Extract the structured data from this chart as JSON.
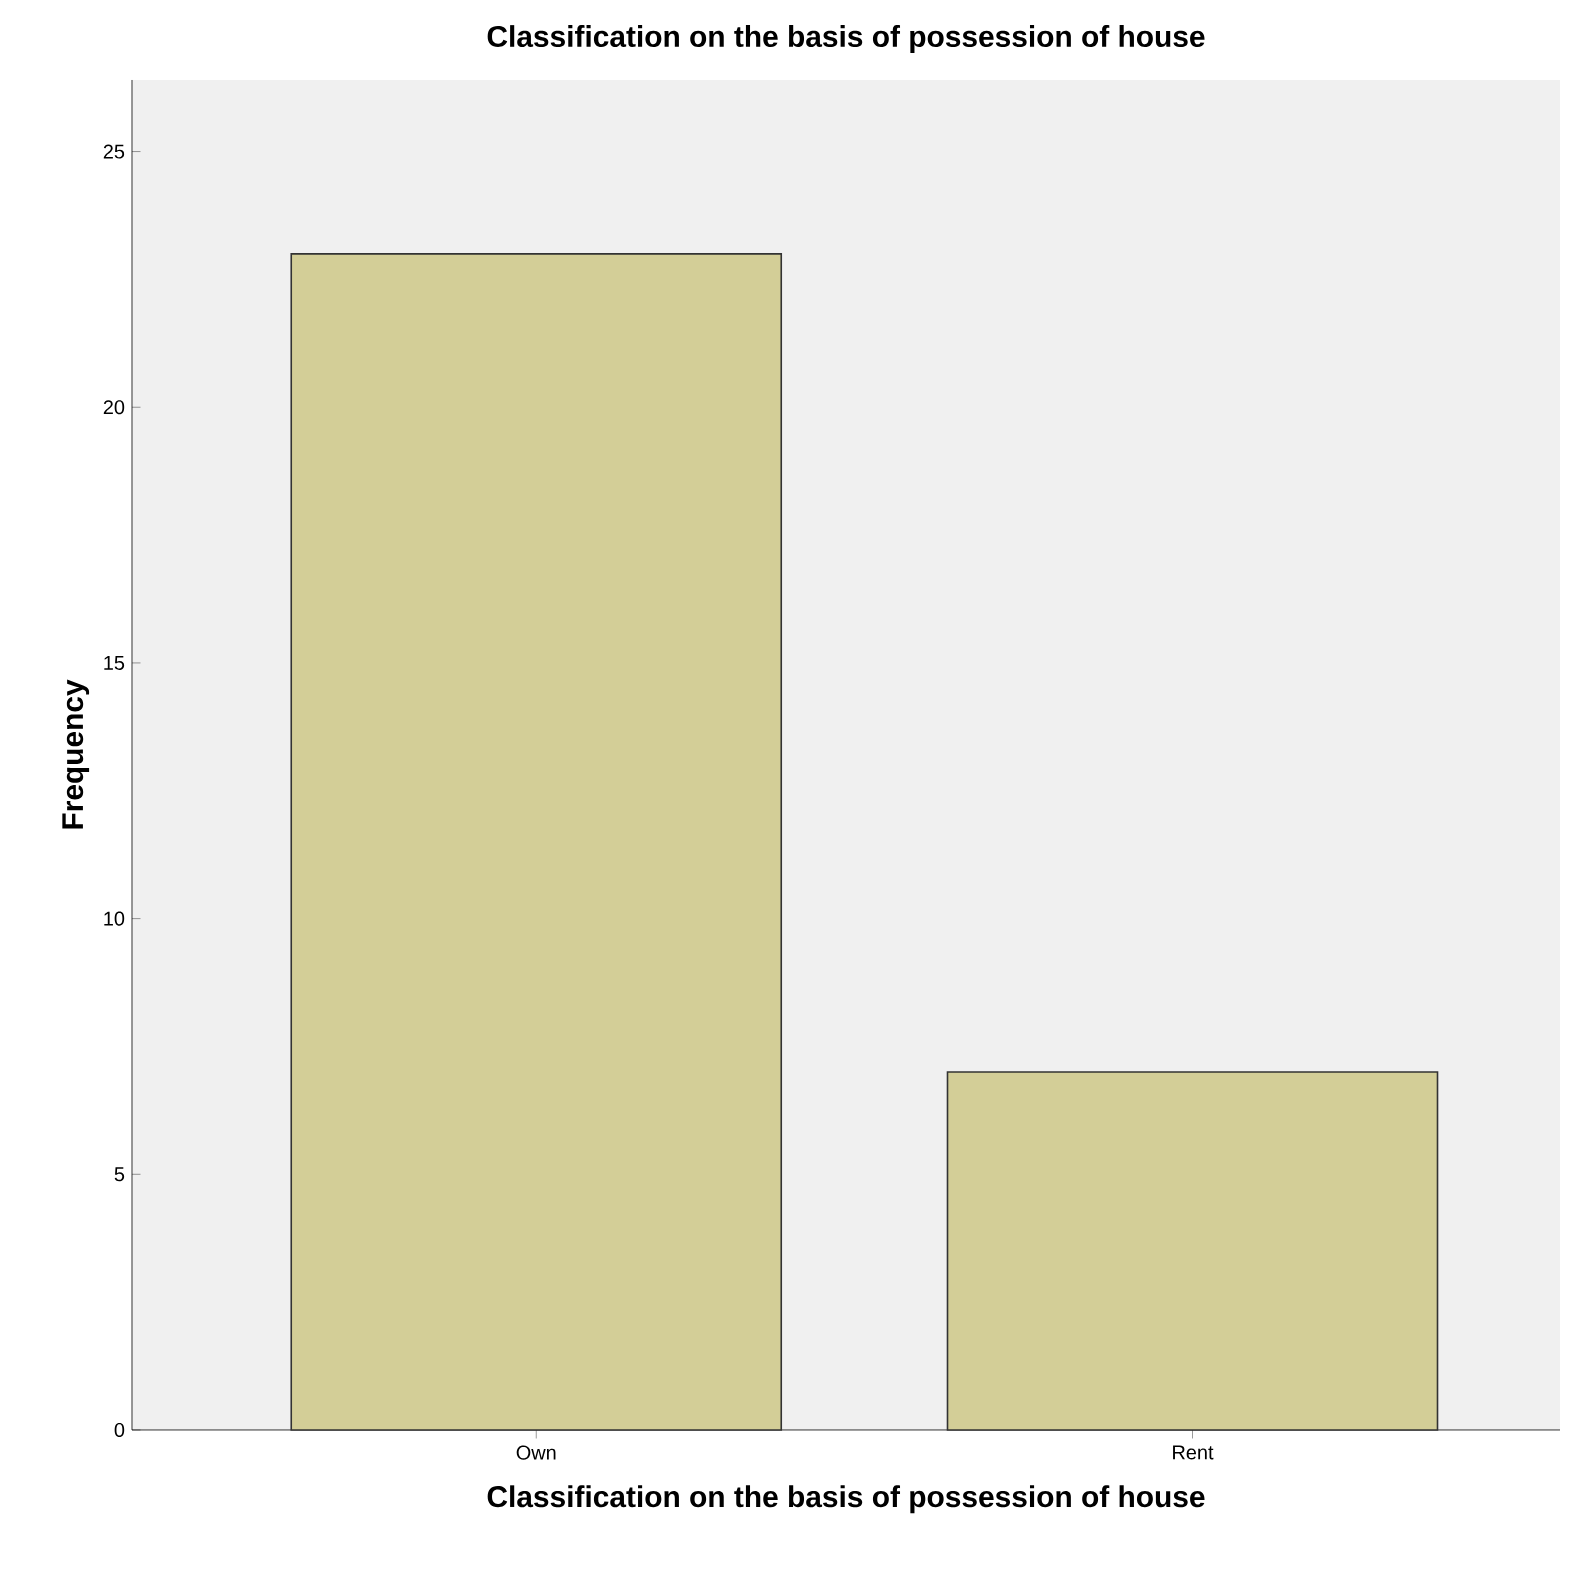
{
  "chart_data": {
    "type": "bar",
    "title": "Classification on the basis of possession of house",
    "xlabel": "Classification on the basis of possession of house",
    "ylabel": "Frequency",
    "categories": [
      "Own",
      "Rent"
    ],
    "values": [
      23,
      7
    ],
    "color": "#d3ce97",
    "ylim": [
      0,
      26.4
    ],
    "yticks": [
      0,
      5,
      10,
      15,
      20,
      25
    ],
    "grid": false,
    "legend": false
  }
}
